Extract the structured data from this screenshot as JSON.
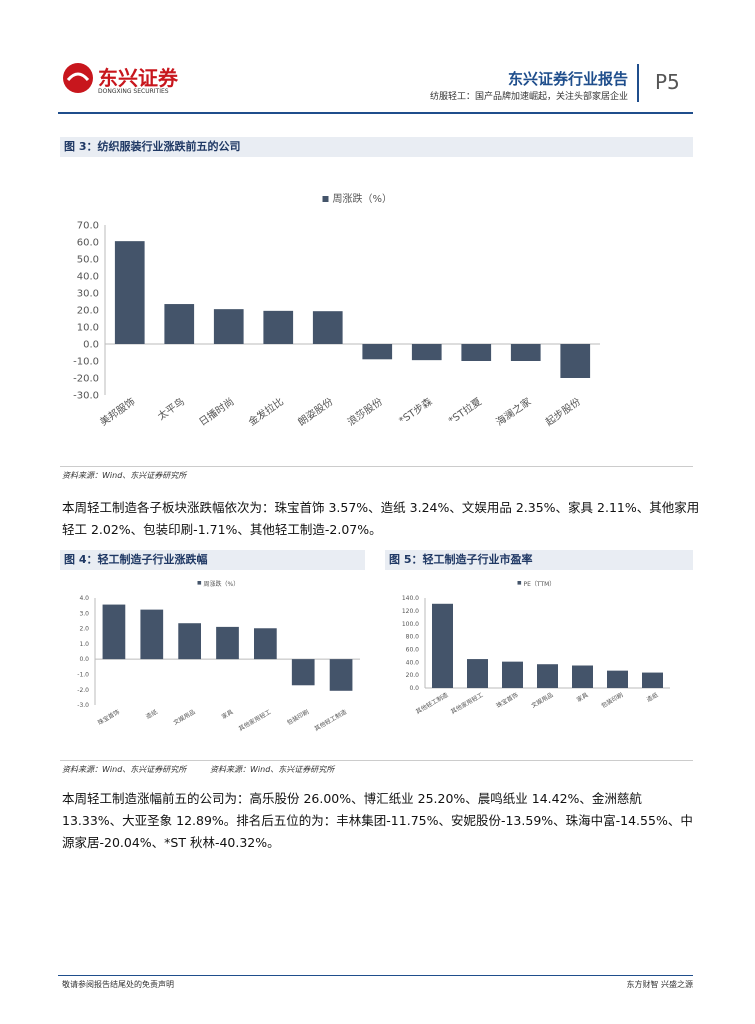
{
  "header": {
    "logo": "东兴证券",
    "logo_en": "DONGXING SECURITIES",
    "title": "东兴证券行业报告",
    "subtitle": "纺服轻工：国产品牌加速崛起，关注头部家居企业",
    "page": "P5"
  },
  "figures": {
    "fig3": "图 3：纺织服装行业涨跌前五的公司",
    "fig4": "图 4：轻工制造子行业涨跌幅",
    "fig5": "图 5：轻工制造子行业市盈率"
  },
  "sources": [
    "资料来源：Wind、东兴证券研究所",
    "资料来源：Wind、东兴证券研究所",
    "资料来源：Wind、东兴证券研究所"
  ],
  "paragraphs": [
    "本周轻工制造各子板块涨跌幅依次为：珠宝首饰 3.57%、造纸 3.24%、文娱用品 2.35%、家具 2.11%、其他家用轻工 2.02%、包装印刷-1.71%、其他轻工制造-2.07%。",
    "本周轻工制造涨幅前五的公司为：高乐股份 26.00%、博汇纸业 25.20%、晨鸣纸业 14.42%、金洲慈航 13.33%、大亚圣象 12.89%。排名后五位的为：丰林集团-11.75%、安妮股份-13.59%、珠海中富-14.55%、中源家居-20.04%、*ST 秋林-40.32%。"
  ],
  "footer": {
    "left": "敬请参阅报告结尾处的免责声明",
    "right": "东方财智 兴盛之源"
  },
  "chart_data": [
    {
      "type": "bar",
      "categories": [
        "美邦服饰",
        "太平鸟",
        "日播时尚",
        "金发拉比",
        "朗姿股份",
        "浪莎股份",
        "*ST步森",
        "*ST拉夏",
        "海澜之家",
        "起步股份"
      ],
      "series": [
        {
          "name": "周涨跌（%）",
          "color": "#44546a",
          "values": [
            60.5,
            23.5,
            20.5,
            19.5,
            19.3,
            -9,
            -9.5,
            -10,
            -10,
            -20
          ]
        }
      ],
      "ylim": [
        -30,
        70
      ],
      "yticks": [
        {
          "value": 70,
          "label": "70.0"
        },
        {
          "value": 60,
          "label": "60.0"
        },
        {
          "value": 50,
          "label": "50.0"
        },
        {
          "value": 40,
          "label": "40.0"
        },
        {
          "value": 30,
          "label": "30.0"
        },
        {
          "value": 20,
          "label": "20.0"
        },
        {
          "value": 10,
          "label": "10.0"
        },
        {
          "value": 0,
          "label": "0.0"
        },
        {
          "value": -10,
          "label": "-10.0"
        },
        {
          "value": -20,
          "label": "-20.0"
        },
        {
          "value": -30,
          "label": "-30.0"
        }
      ]
    },
    {
      "type": "bar",
      "categories": [
        "珠宝首饰",
        "造纸",
        "文娱用品",
        "家具",
        "其他家用轻工",
        "包装印刷",
        "其他轻工制造"
      ],
      "series": [
        {
          "name": "周涨跌（%）",
          "color": "#44546a",
          "values": [
            3.57,
            3.24,
            2.35,
            2.11,
            2.02,
            -1.71,
            -2.07
          ]
        }
      ],
      "ylim": [
        -3,
        4
      ],
      "yticks": [
        {
          "value": 4,
          "label": "4.0"
        },
        {
          "value": 3,
          "label": "3.0"
        },
        {
          "value": 2,
          "label": "2.0"
        },
        {
          "value": 1,
          "label": "1.0"
        },
        {
          "value": 0,
          "label": "0.0"
        },
        {
          "value": -1,
          "label": "-1.0"
        },
        {
          "value": -2,
          "label": "-2.0"
        },
        {
          "value": -3,
          "label": "-3.0"
        }
      ]
    },
    {
      "type": "bar",
      "categories": [
        "其他轻工制造",
        "其他家用轻工",
        "珠宝首饰",
        "文娱用品",
        "家具",
        "包装印刷",
        "造纸"
      ],
      "series": [
        {
          "name": "PE（TTM）",
          "color": "#44546a",
          "values": [
            131,
            45,
            41,
            37,
            35,
            27,
            24
          ]
        }
      ],
      "ylim": [
        0,
        140
      ],
      "yticks": [
        {
          "value": 140,
          "label": "140.0"
        },
        {
          "value": 120,
          "label": "120.0"
        },
        {
          "value": 100,
          "label": "100.0"
        },
        {
          "value": 80,
          "label": "80.0"
        },
        {
          "value": 60,
          "label": "60.0"
        },
        {
          "value": 40,
          "label": "40.0"
        },
        {
          "value": 20,
          "label": "20.0"
        },
        {
          "value": 0,
          "label": "0.0"
        }
      ]
    }
  ]
}
